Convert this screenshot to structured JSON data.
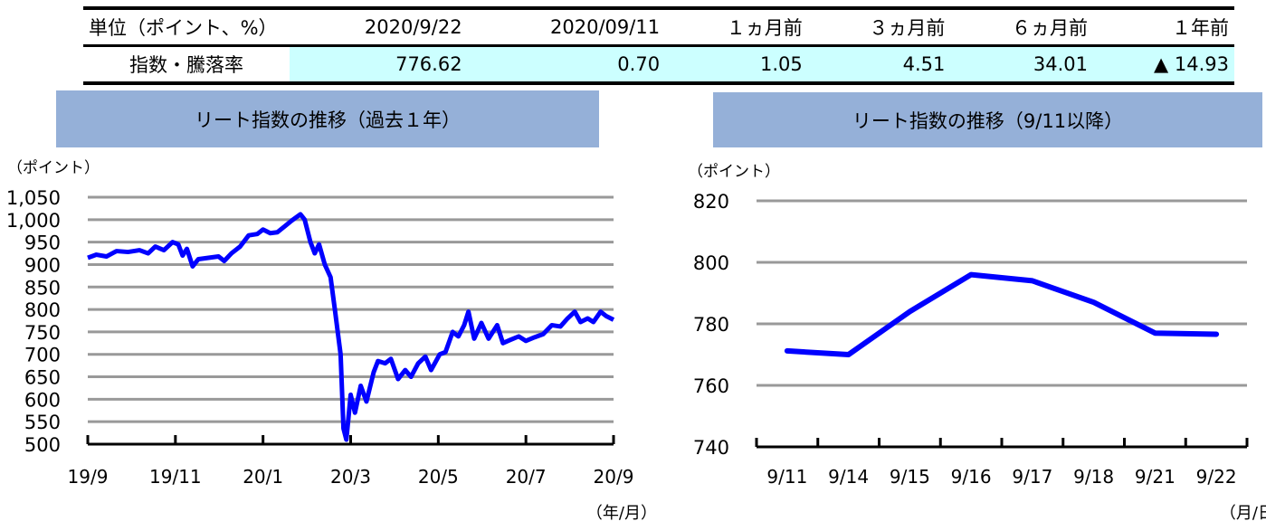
{
  "table": {
    "headers": [
      "単位（ポイント、%）",
      "2020/9/22",
      "2020/09/11",
      "１ヵ月前",
      "３ヵ月前",
      "６ヵ月前",
      "１年前"
    ],
    "row_label": "指数・騰落率",
    "values": [
      "776.62",
      "0.70",
      "1.05",
      "4.51",
      "34.01",
      "▲ 14.93"
    ],
    "value_bg": "#CCFFFF"
  },
  "chart_data": [
    {
      "type": "line",
      "title": "リート指数の推移（過去１年）",
      "ylabel": "（ポイント）",
      "xlabel": "（年/月）",
      "ylim": [
        500,
        1050
      ],
      "yticks": [
        "1,050",
        "1,000",
        "950",
        "900",
        "850",
        "800",
        "750",
        "700",
        "650",
        "600",
        "550",
        "500"
      ],
      "xlim": [
        "2019-09-22",
        "2020-09-22"
      ],
      "xticks": [
        "19/9",
        "19/11",
        "20/1",
        "20/3",
        "20/5",
        "20/7",
        "20/9"
      ],
      "grid": true,
      "color": "#0000FF",
      "points": [
        [
          "2019-09-22",
          915
        ],
        [
          "2019-09-28",
          922
        ],
        [
          "2019-10-05",
          918
        ],
        [
          "2019-10-12",
          930
        ],
        [
          "2019-10-20",
          928
        ],
        [
          "2019-10-28",
          932
        ],
        [
          "2019-11-03",
          925
        ],
        [
          "2019-11-08",
          940
        ],
        [
          "2019-11-14",
          932
        ],
        [
          "2019-11-20",
          950
        ],
        [
          "2019-11-24",
          945
        ],
        [
          "2019-11-27",
          920
        ],
        [
          "2019-11-30",
          935
        ],
        [
          "2019-12-04",
          896
        ],
        [
          "2019-12-08",
          912
        ],
        [
          "2019-12-15",
          915
        ],
        [
          "2019-12-22",
          918
        ],
        [
          "2019-12-26",
          908
        ],
        [
          "2019-12-31",
          925
        ],
        [
          "2020-01-06",
          940
        ],
        [
          "2020-01-12",
          965
        ],
        [
          "2020-01-18",
          968
        ],
        [
          "2020-01-22",
          978
        ],
        [
          "2020-01-27",
          970
        ],
        [
          "2020-02-01",
          972
        ],
        [
          "2020-02-06",
          985
        ],
        [
          "2020-02-11",
          998
        ],
        [
          "2020-02-17",
          1012
        ],
        [
          "2020-02-20",
          1000
        ],
        [
          "2020-02-24",
          950
        ],
        [
          "2020-02-27",
          925
        ],
        [
          "2020-03-01",
          945
        ],
        [
          "2020-03-05",
          900
        ],
        [
          "2020-03-09",
          872
        ],
        [
          "2020-03-12",
          800
        ],
        [
          "2020-03-16",
          700
        ],
        [
          "2020-03-18",
          535
        ],
        [
          "2020-03-20",
          510
        ],
        [
          "2020-03-23",
          610
        ],
        [
          "2020-03-26",
          570
        ],
        [
          "2020-03-30",
          630
        ],
        [
          "2020-04-03",
          595
        ],
        [
          "2020-04-08",
          660
        ],
        [
          "2020-04-11",
          685
        ],
        [
          "2020-04-16",
          680
        ],
        [
          "2020-04-20",
          690
        ],
        [
          "2020-04-25",
          645
        ],
        [
          "2020-04-30",
          665
        ],
        [
          "2020-05-04",
          650
        ],
        [
          "2020-05-09",
          680
        ],
        [
          "2020-05-14",
          695
        ],
        [
          "2020-05-18",
          665
        ],
        [
          "2020-05-24",
          700
        ],
        [
          "2020-05-28",
          705
        ],
        [
          "2020-06-02",
          750
        ],
        [
          "2020-06-06",
          740
        ],
        [
          "2020-06-10",
          765
        ],
        [
          "2020-06-13",
          795
        ],
        [
          "2020-06-17",
          735
        ],
        [
          "2020-06-22",
          770
        ],
        [
          "2020-06-27",
          735
        ],
        [
          "2020-07-03",
          765
        ],
        [
          "2020-07-07",
          725
        ],
        [
          "2020-07-12",
          732
        ],
        [
          "2020-07-18",
          740
        ],
        [
          "2020-07-23",
          730
        ],
        [
          "2020-07-29",
          738
        ],
        [
          "2020-08-04",
          745
        ],
        [
          "2020-08-10",
          765
        ],
        [
          "2020-08-16",
          762
        ],
        [
          "2020-08-21",
          780
        ],
        [
          "2020-08-26",
          795
        ],
        [
          "2020-08-30",
          772
        ],
        [
          "2020-09-04",
          780
        ],
        [
          "2020-09-08",
          772
        ],
        [
          "2020-09-13",
          795
        ],
        [
          "2020-09-17",
          785
        ],
        [
          "2020-09-22",
          777
        ]
      ]
    },
    {
      "type": "line",
      "title": "リート指数の推移（9/11以降）",
      "ylabel": "（ポイント）",
      "xlabel": "（月/日）",
      "ylim": [
        740,
        820
      ],
      "yticks": [
        "820",
        "800",
        "780",
        "760",
        "740"
      ],
      "categories": [
        "9/11",
        "9/14",
        "9/15",
        "9/16",
        "9/17",
        "9/18",
        "9/21",
        "9/22"
      ],
      "values": [
        771.2,
        770.0,
        784.0,
        796.0,
        794.0,
        787.0,
        777.0,
        776.62
      ],
      "grid": true,
      "color": "#0000FF"
    }
  ],
  "title_bg": "#95B0D8"
}
